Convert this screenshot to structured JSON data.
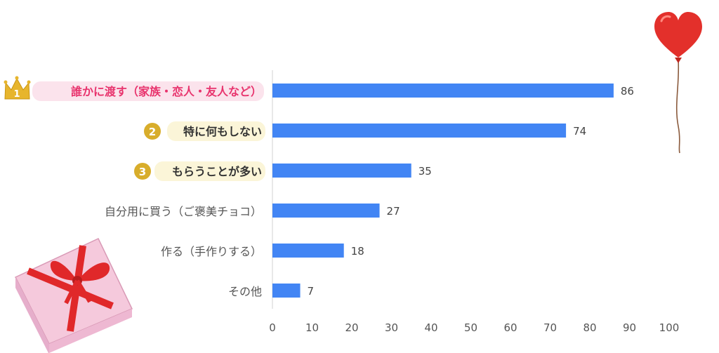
{
  "chart_data": {
    "type": "bar",
    "orientation": "horizontal",
    "categories": [
      "誰かに渡す（家族・恋人・友人など）",
      "特に何もしない",
      "もらうことが多い",
      "自分用に買う（ご褒美チョコ）",
      "作る（手作りする）",
      "その他"
    ],
    "values": [
      86,
      74,
      35,
      27,
      18,
      7
    ],
    "rank_badges": [
      "1",
      "2",
      "3"
    ],
    "xlim": [
      0,
      100
    ],
    "xticks": [
      "0",
      "10",
      "20",
      "30",
      "40",
      "50",
      "60",
      "70",
      "80",
      "90",
      "100"
    ],
    "grid": false,
    "legend": "none"
  },
  "colors": {
    "bar": "#4285f4",
    "first_label": "#e8336d",
    "first_highlight": "#fbe3ec",
    "top3_highlight": "#fbf5d8",
    "badge_gold": "#d8ad2b",
    "axis": "#d9d9d9"
  },
  "decorations": {
    "crown": "crown-icon",
    "balloon": "heart-balloon-illustration",
    "gift": "gift-box-illustration"
  }
}
